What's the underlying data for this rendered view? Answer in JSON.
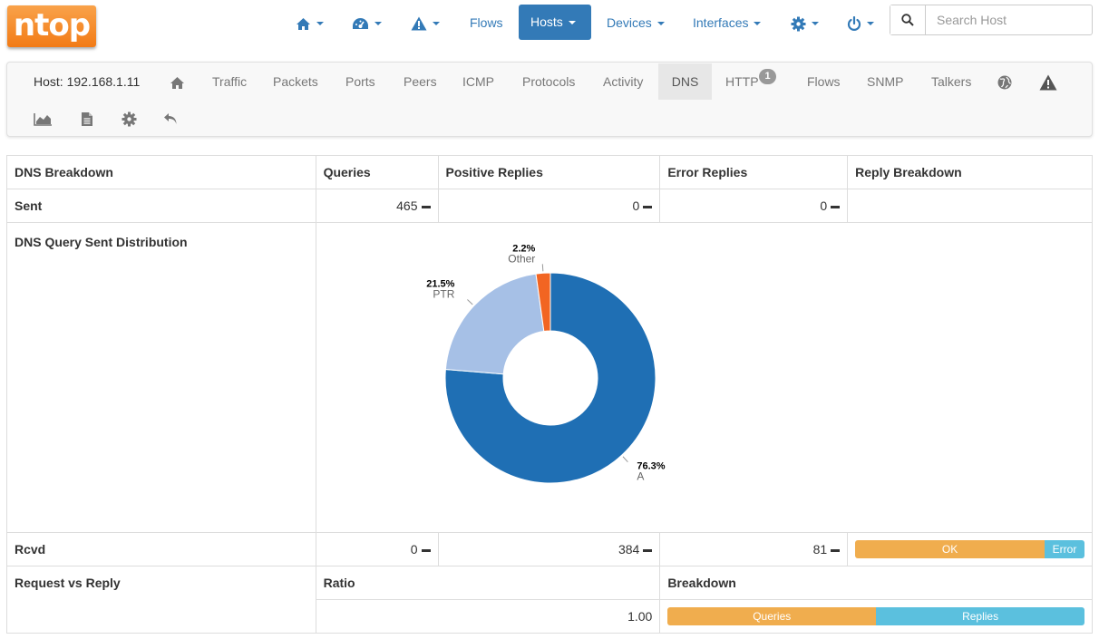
{
  "nav": {
    "logo": "ntop",
    "flows": "Flows",
    "hosts": "Hosts",
    "devices": "Devices",
    "interfaces": "Interfaces",
    "search_placeholder": "Search Host",
    "accent": "#337ab7"
  },
  "hostbar": {
    "host_label": "Host: 192.168.1.11",
    "tabs": {
      "traffic": "Traffic",
      "packets": "Packets",
      "ports": "Ports",
      "peers": "Peers",
      "icmp": "ICMP",
      "protocols": "Protocols",
      "activity": "Activity",
      "dns": "DNS",
      "http": "HTTP",
      "http_badge": "1",
      "flows": "Flows",
      "snmp": "SNMP",
      "talkers": "Talkers"
    },
    "icons": [
      "home-icon",
      "globe-icon",
      "warning-icon",
      "area-chart-icon",
      "file-icon",
      "gear-icon",
      "undo-icon"
    ]
  },
  "table": {
    "headers": {
      "breakdown": "DNS Breakdown",
      "queries": "Queries",
      "positive": "Positive Replies",
      "error": "Error Replies",
      "reply_breakdown": "Reply Breakdown"
    },
    "sent": {
      "label": "Sent",
      "queries": "465",
      "positive": "0",
      "error": "0"
    },
    "distribution_label": "DNS Query Sent Distribution",
    "rcvd": {
      "label": "Rcvd",
      "queries": "0",
      "positive": "384",
      "error": "81",
      "bar_ok": "OK",
      "bar_error": "Error",
      "ok_fraction": 0.826
    },
    "ratio": {
      "label": "Request vs Reply",
      "ratio_header": "Ratio",
      "breakdown_header": "Breakdown",
      "value": "1.00",
      "bar_queries": "Queries",
      "bar_replies": "Replies",
      "queries_fraction": 0.5
    }
  },
  "chart_data": {
    "type": "pie",
    "donut": true,
    "slices": [
      {
        "label": "A",
        "percent_label": "76.3%",
        "value": 76.3,
        "color": "#1f6fb4"
      },
      {
        "label": "PTR",
        "percent_label": "21.5%",
        "value": 21.5,
        "color": "#a6c0e6"
      },
      {
        "label": "Other",
        "percent_label": "2.2%",
        "value": 2.2,
        "color": "#f26522"
      }
    ]
  }
}
